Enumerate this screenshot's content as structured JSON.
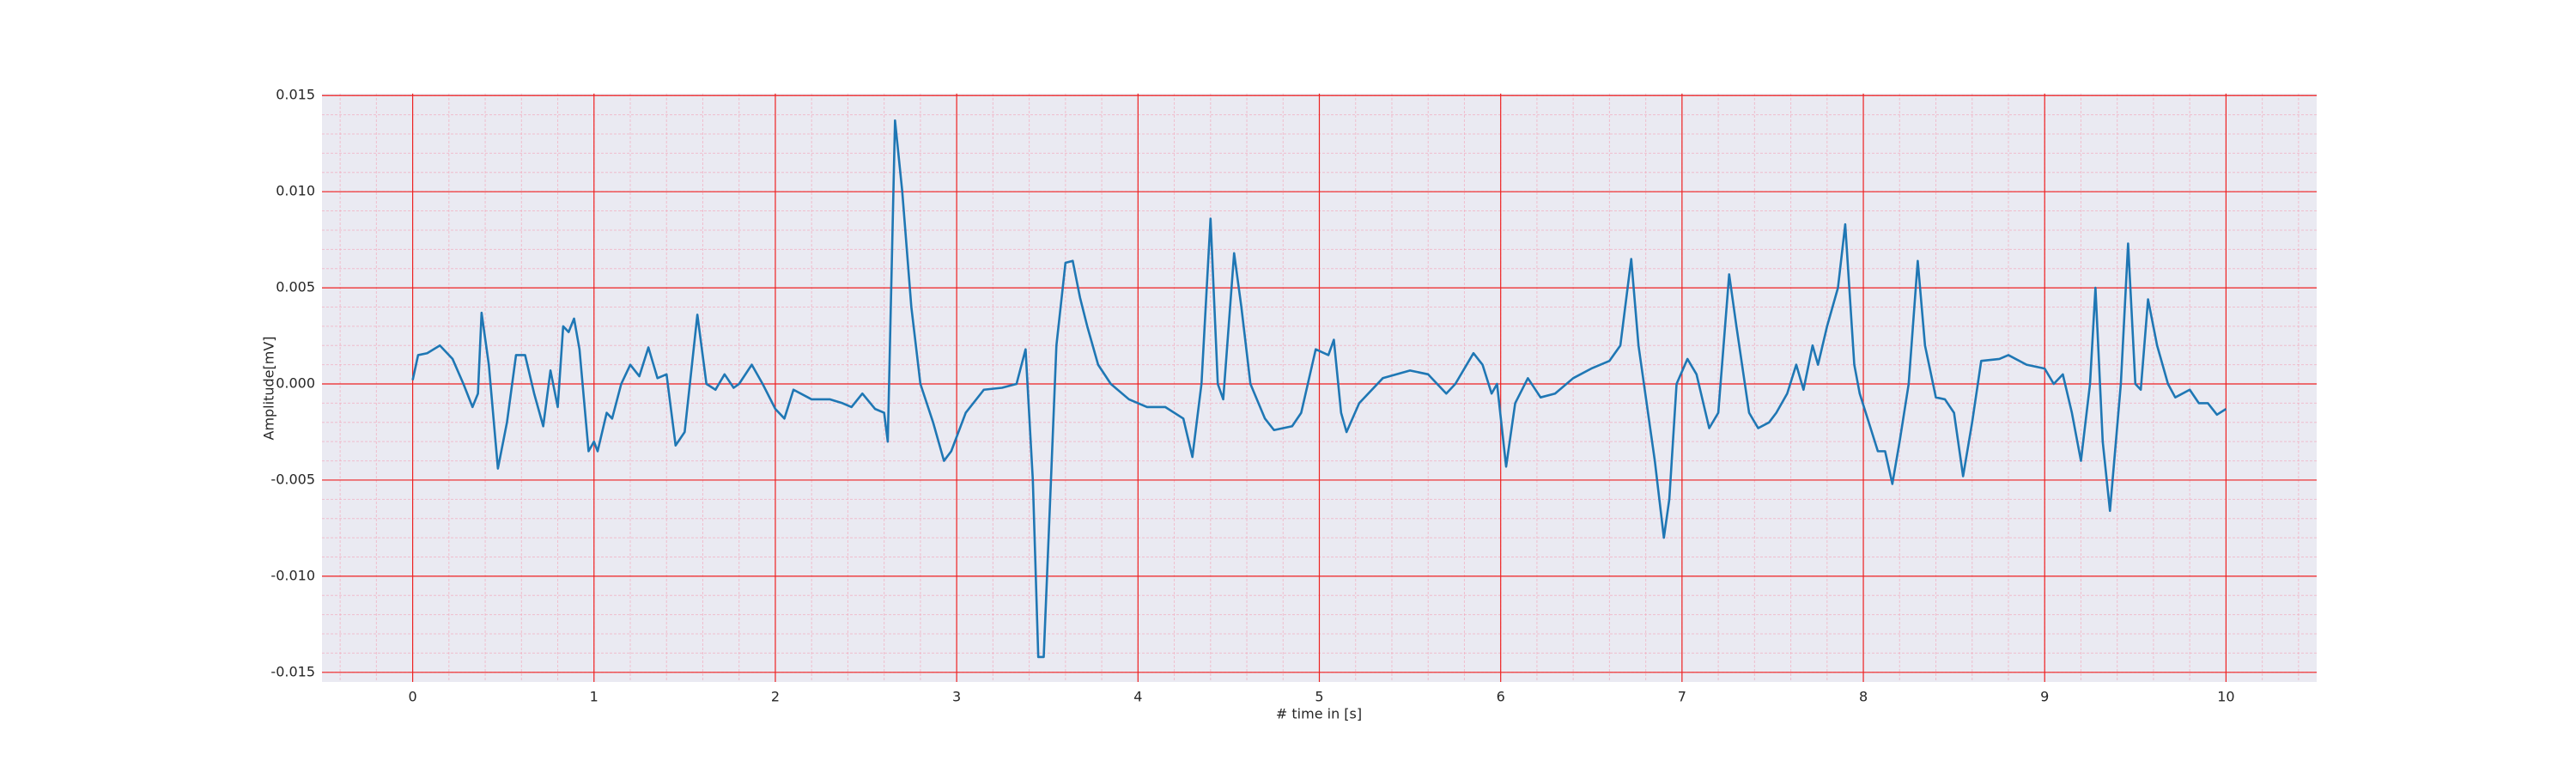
{
  "chart_data": {
    "type": "line",
    "xlabel": "# time in [s]",
    "ylabel": "Amplitude[mV]",
    "color": "#1f77b4",
    "grid": true,
    "grid_color": "#ee2222",
    "minor_grid_color": "#f4a0b4",
    "minor_divisions": 5,
    "background": "#eaeaf2",
    "xlim": [
      -0.5,
      10.5
    ],
    "xticks": [
      0,
      1,
      2,
      3,
      4,
      5,
      6,
      7,
      8,
      9,
      10
    ],
    "ylim": [
      -0.0155,
      0.0151
    ],
    "yticks": [
      {
        "value": -0.015,
        "label": "-0.015"
      },
      {
        "value": -0.01,
        "label": "-0.010"
      },
      {
        "value": -0.005,
        "label": "-0.005"
      },
      {
        "value": 0,
        "label": "0.000"
      },
      {
        "value": 0.005,
        "label": "0.005"
      },
      {
        "value": 0.01,
        "label": "0.010"
      },
      {
        "value": 0.015,
        "label": "0.015"
      }
    ],
    "x": [
      0,
      0.03,
      0.08,
      0.15,
      0.22,
      0.28,
      0.33,
      0.36,
      0.38,
      0.42,
      0.47,
      0.52,
      0.57,
      0.62,
      0.67,
      0.72,
      0.76,
      0.8,
      0.83,
      0.86,
      0.89,
      0.92,
      0.97,
      1.0,
      1.02,
      1.07,
      1.1,
      1.15,
      1.2,
      1.25,
      1.3,
      1.35,
      1.4,
      1.45,
      1.5,
      1.57,
      1.62,
      1.67,
      1.72,
      1.77,
      1.8,
      1.87,
      1.93,
      2.0,
      2.05,
      2.1,
      2.2,
      2.3,
      2.37,
      2.42,
      2.48,
      2.55,
      2.6,
      2.62,
      2.66,
      2.7,
      2.75,
      2.8,
      2.87,
      2.93,
      2.97,
      3.05,
      3.15,
      3.25,
      3.33,
      3.38,
      3.42,
      3.45,
      3.48,
      3.52,
      3.55,
      3.6,
      3.64,
      3.68,
      3.72,
      3.78,
      3.85,
      3.95,
      4.05,
      4.15,
      4.25,
      4.3,
      4.35,
      4.4,
      4.44,
      4.47,
      4.53,
      4.57,
      4.62,
      4.7,
      4.75,
      4.85,
      4.9,
      4.98,
      5.05,
      5.08,
      5.12,
      5.15,
      5.22,
      5.35,
      5.5,
      5.6,
      5.7,
      5.75,
      5.85,
      5.9,
      5.95,
      5.98,
      6.03,
      6.08,
      6.15,
      6.22,
      6.3,
      6.4,
      6.5,
      6.6,
      6.66,
      6.72,
      6.76,
      6.85,
      6.9,
      6.93,
      6.97,
      7.03,
      7.08,
      7.15,
      7.2,
      7.26,
      7.3,
      7.37,
      7.42,
      7.48,
      7.52,
      7.58,
      7.63,
      7.67,
      7.72,
      7.75,
      7.8,
      7.86,
      7.9,
      7.95,
      7.98,
      8.03,
      8.08,
      8.12,
      8.16,
      8.2,
      8.25,
      8.3,
      8.34,
      8.4,
      8.45,
      8.5,
      8.55,
      8.6,
      8.65,
      8.75,
      8.8,
      8.9,
      9.0,
      9.05,
      9.1,
      9.15,
      9.2,
      9.25,
      9.28,
      9.32,
      9.36,
      9.42,
      9.46,
      9.5,
      9.53,
      9.57,
      9.62,
      9.68,
      9.72,
      9.8,
      9.85,
      9.9,
      9.95,
      10.0
    ],
    "values": [
      0.0002,
      0.0015,
      0.0016,
      0.002,
      0.0013,
      0.0,
      -0.0012,
      -0.0005,
      0.0037,
      0.001,
      -0.0044,
      -0.002,
      0.0015,
      0.0015,
      -0.0005,
      -0.0022,
      0.0007,
      -0.0012,
      0.003,
      0.0027,
      0.0034,
      0.0018,
      -0.0035,
      -0.003,
      -0.0035,
      -0.0015,
      -0.0018,
      0.0,
      0.001,
      0.0004,
      0.0019,
      0.0003,
      0.0005,
      -0.0032,
      -0.0025,
      0.0036,
      0.0,
      -0.0003,
      0.0005,
      -0.0002,
      0.0,
      0.001,
      0.0,
      -0.0013,
      -0.0018,
      -0.0003,
      -0.0008,
      -0.0008,
      -0.001,
      -0.0012,
      -0.0005,
      -0.0013,
      -0.0015,
      -0.003,
      0.0137,
      0.01,
      0.004,
      0.0,
      -0.002,
      -0.004,
      -0.0035,
      -0.0015,
      -0.0003,
      -0.0002,
      0.0,
      0.0018,
      -0.005,
      -0.0142,
      -0.0142,
      -0.005,
      0.002,
      0.0063,
      0.0064,
      0.0045,
      0.003,
      0.001,
      0.0,
      -0.0008,
      -0.0012,
      -0.0012,
      -0.0018,
      -0.0038,
      0.0,
      0.0086,
      0.0,
      -0.0008,
      0.0068,
      0.004,
      0.0,
      -0.0018,
      -0.0024,
      -0.0022,
      -0.0015,
      0.0018,
      0.0015,
      0.0023,
      -0.0015,
      -0.0025,
      -0.001,
      0.0003,
      0.0007,
      0.0005,
      -0.0005,
      0.0,
      0.0016,
      0.001,
      -0.0005,
      0.0,
      -0.0043,
      -0.001,
      0.0003,
      -0.0007,
      -0.0005,
      0.0003,
      0.0008,
      0.0012,
      0.002,
      0.0065,
      0.002,
      -0.004,
      -0.008,
      -0.006,
      0.0,
      0.0013,
      0.0005,
      -0.0023,
      -0.0015,
      0.0057,
      0.003,
      -0.0015,
      -0.0023,
      -0.002,
      -0.0015,
      -0.0005,
      0.001,
      -0.0003,
      0.002,
      0.001,
      0.003,
      0.005,
      0.0083,
      0.001,
      -0.0005,
      -0.002,
      -0.0035,
      -0.0035,
      -0.0052,
      -0.003,
      0.0,
      0.0064,
      0.002,
      -0.0007,
      -0.0008,
      -0.0015,
      -0.0048,
      -0.002,
      0.0012,
      0.0013,
      0.0015,
      0.001,
      0.0008,
      0.0,
      0.0005,
      -0.0015,
      -0.004,
      0.0,
      0.005,
      -0.003,
      -0.0066,
      0.0,
      0.0073,
      0.0,
      -0.0003,
      0.0044,
      0.002,
      0.0,
      -0.0007,
      -0.0003,
      -0.001,
      -0.001,
      -0.0016,
      -0.0013
    ]
  }
}
